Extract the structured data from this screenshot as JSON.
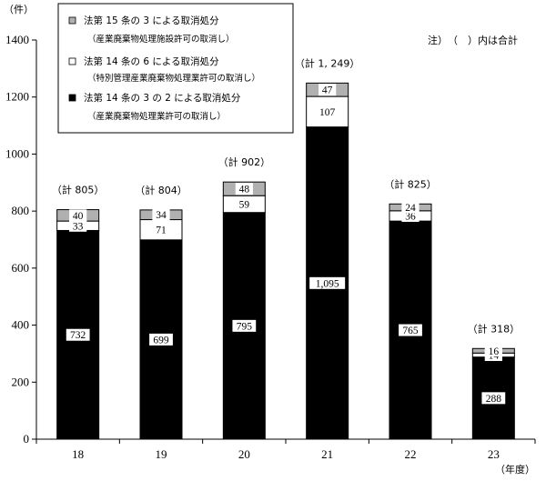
{
  "chart_data": {
    "type": "bar",
    "stacked": true,
    "y_unit_label": "（件）",
    "x_unit_label": "（年度）",
    "note": "注）　（　）内は合計",
    "categories": [
      "18",
      "19",
      "20",
      "21",
      "22",
      "23"
    ],
    "ylim": [
      0,
      1400
    ],
    "yticks": [
      0,
      200,
      400,
      600,
      800,
      1000,
      1200,
      1400
    ],
    "series": [
      {
        "name": "法第 14 条の 3 の 2 による取消処分",
        "sub": "（産業廃棄物処理業許可の取消し）",
        "color": "#000000",
        "values": [
          732,
          699,
          795,
          1095,
          765,
          288
        ],
        "labels": [
          "732",
          "699",
          "795",
          "1,095",
          "765",
          "288"
        ]
      },
      {
        "name": "法第 14 条の 6 による取消処分",
        "sub": "（特別管理産業廃棄物処理業許可の取消し）",
        "color": "#ffffff",
        "values": [
          33,
          71,
          59,
          107,
          36,
          14
        ],
        "labels": [
          "33",
          "71",
          "59",
          "107",
          "36",
          "14"
        ]
      },
      {
        "name": "法第 15 条の 3 による取消処分",
        "sub": "（産業廃棄物処理施設許可の取消し）",
        "color": "#b0b0b0",
        "values": [
          40,
          34,
          48,
          47,
          24,
          16
        ],
        "labels": [
          "40",
          "34",
          "48",
          "47",
          "24",
          "16"
        ]
      }
    ],
    "totals": [
      "（計 805）",
      "（計 804）",
      "（計 902）",
      "（計 1, 249）",
      "（計 825）",
      "（計 318）"
    ],
    "legend_position": "top-left",
    "grid": false
  }
}
